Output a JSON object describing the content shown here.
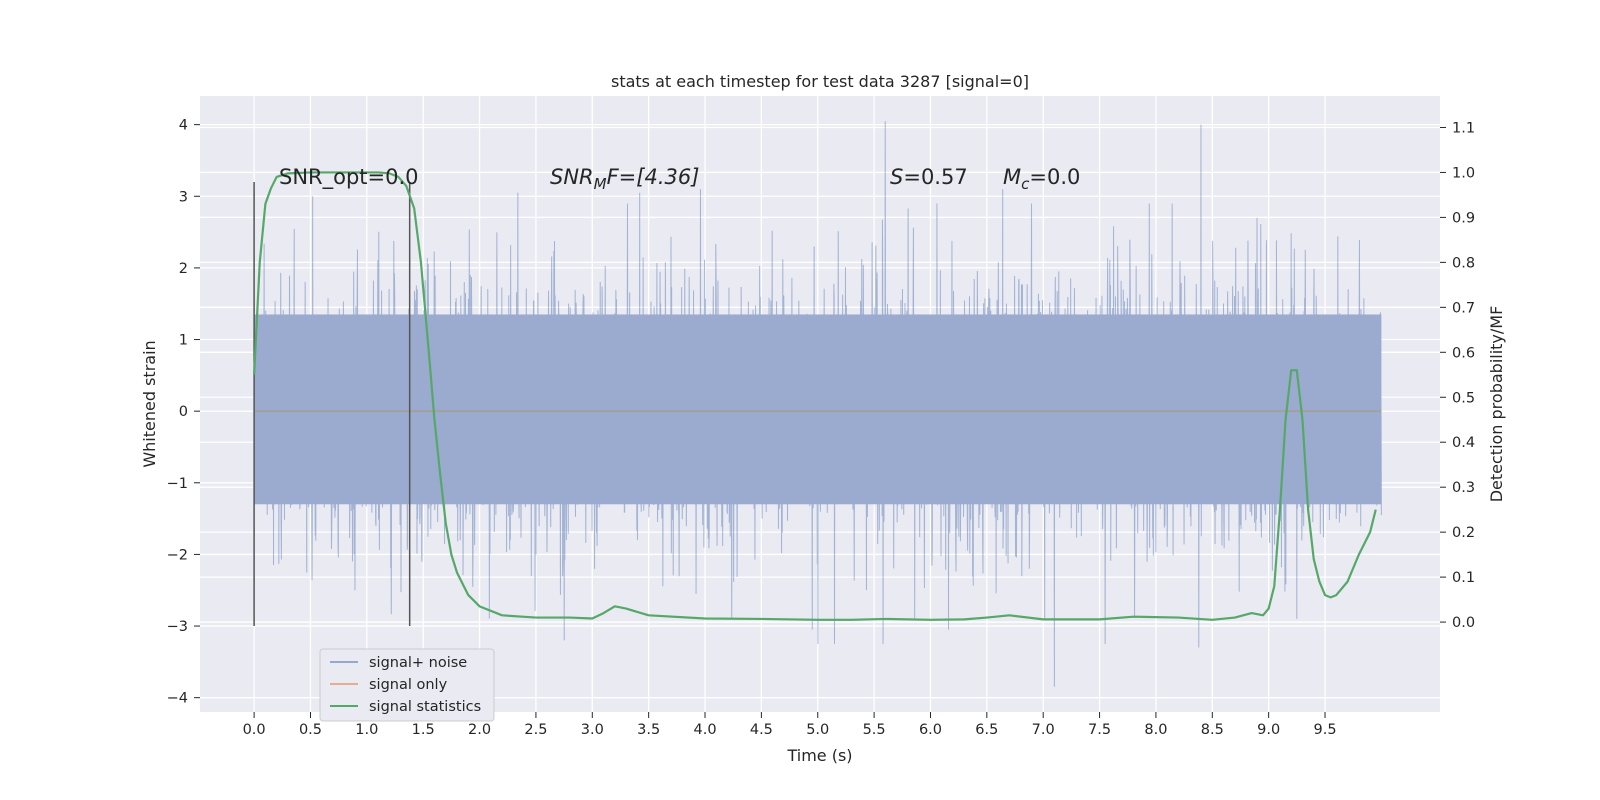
{
  "chart_data": {
    "type": "line",
    "title": "stats at each timestep for test data 3287 [signal=0]",
    "xlabel": "Time (s)",
    "ylabel": "Whitened strain",
    "y2label": "Detection probability/MF",
    "xlim": [
      -0.48,
      10.52
    ],
    "ylim": [
      -4.2,
      4.4
    ],
    "y2lim": [
      -0.2,
      1.17
    ],
    "xticks": [
      0.0,
      0.5,
      1.0,
      1.5,
      2.0,
      2.5,
      3.0,
      3.5,
      4.0,
      4.5,
      5.0,
      5.5,
      6.0,
      6.5,
      7.0,
      7.5,
      8.0,
      8.5,
      9.0,
      9.5
    ],
    "xtick_labels": [
      "0.0",
      "0.5",
      "1.0",
      "1.5",
      "2.0",
      "2.5",
      "3.0",
      "3.5",
      "4.0",
      "4.5",
      "5.0",
      "5.5",
      "6.0",
      "6.5",
      "7.0",
      "7.5",
      "8.0",
      "8.5",
      "9.0",
      "9.5"
    ],
    "yticks": [
      4,
      3,
      2,
      1,
      0,
      -1,
      -2,
      -3,
      -4
    ],
    "ytick_labels": [
      "4",
      "3",
      "2",
      "1",
      "0",
      "−1",
      "−2",
      "−3",
      "−4"
    ],
    "y2ticks": [
      1.1,
      1.0,
      0.9,
      0.8,
      0.7,
      0.6,
      0.5,
      0.4,
      0.3,
      0.2,
      0.1,
      0.0
    ],
    "y2tick_labels": [
      "1.1",
      "1.0",
      "0.9",
      "0.8",
      "0.7",
      "0.6",
      "0.5",
      "0.4",
      "0.3",
      "0.2",
      "0.1",
      "0.0"
    ],
    "grid": true,
    "legend_position": "lower-left",
    "annotations": {
      "snr_opt": "SNR_opt=0.0",
      "snr_mf_prefix": "SNR",
      "snr_mf_sub": "M",
      "snr_mf_suffix": "F=[4.36]",
      "s_var": "S",
      "s_value": "=0.57",
      "mc_var": "M",
      "mc_sub": "c",
      "mc_value": "=0.0"
    },
    "markers": [
      {
        "x": 0.0,
        "y_range": [
          -3.0,
          3.2
        ]
      },
      {
        "x": 1.38,
        "y_range": [
          -3.0,
          3.2
        ]
      }
    ],
    "series": [
      {
        "name": "signal+ noise",
        "color": "#4c72b0",
        "axis": "left",
        "time_range": [
          0.0,
          10.0
        ],
        "envelope_core": [
          -1.3,
          1.35
        ],
        "typical_peak": [
          -2.5,
          2.5
        ],
        "spikes": [
          {
            "x": 5.6,
            "y": 4.05
          },
          {
            "x": 8.4,
            "y": 4.0
          },
          {
            "x": 7.1,
            "y": -3.85
          },
          {
            "x": 0.52,
            "y": 3.0
          },
          {
            "x": 2.34,
            "y": 3.05
          },
          {
            "x": 3.42,
            "y": 3.05
          },
          {
            "x": 3.96,
            "y": 3.1
          },
          {
            "x": 6.64,
            "y": 3.1
          },
          {
            "x": 7.94,
            "y": 2.9
          },
          {
            "x": 2.75,
            "y": -3.2
          },
          {
            "x": 5.0,
            "y": -3.25
          },
          {
            "x": 5.15,
            "y": -3.25
          },
          {
            "x": 5.58,
            "y": -3.25
          },
          {
            "x": 7.55,
            "y": -3.25
          },
          {
            "x": 8.38,
            "y": -3.3
          },
          {
            "x": 4.95,
            "y": -3.05
          },
          {
            "x": 6.16,
            "y": -3.05
          },
          {
            "x": 9.25,
            "y": -2.9
          }
        ]
      },
      {
        "name": "signal only",
        "color": "#dd8452",
        "axis": "left",
        "x": [
          0.0,
          10.0
        ],
        "y": [
          0.0,
          0.0
        ]
      },
      {
        "name": "signal statistics",
        "color": "#55a868",
        "axis": "right",
        "x": [
          0.0,
          0.05,
          0.1,
          0.15,
          0.2,
          0.3,
          0.5,
          0.8,
          1.0,
          1.1,
          1.2,
          1.28,
          1.35,
          1.42,
          1.48,
          1.55,
          1.6,
          1.65,
          1.7,
          1.75,
          1.8,
          1.9,
          2.0,
          2.2,
          2.5,
          2.8,
          3.0,
          3.1,
          3.2,
          3.3,
          3.5,
          4.0,
          4.5,
          5.0,
          5.3,
          5.6,
          6.0,
          6.3,
          6.5,
          6.7,
          7.0,
          7.5,
          7.8,
          8.2,
          8.5,
          8.7,
          8.85,
          8.95,
          9.0,
          9.05,
          9.1,
          9.15,
          9.2,
          9.25,
          9.3,
          9.35,
          9.4,
          9.45,
          9.5,
          9.55,
          9.6,
          9.7,
          9.8,
          9.9,
          9.95
        ],
        "y": [
          0.55,
          0.8,
          0.93,
          0.965,
          0.99,
          0.998,
          1.0,
          1.0,
          1.0,
          1.0,
          0.998,
          0.99,
          0.97,
          0.92,
          0.8,
          0.6,
          0.45,
          0.33,
          0.22,
          0.15,
          0.11,
          0.06,
          0.035,
          0.015,
          0.01,
          0.01,
          0.008,
          0.02,
          0.035,
          0.03,
          0.015,
          0.008,
          0.007,
          0.005,
          0.005,
          0.007,
          0.005,
          0.006,
          0.01,
          0.015,
          0.006,
          0.006,
          0.012,
          0.01,
          0.005,
          0.01,
          0.02,
          0.015,
          0.03,
          0.08,
          0.25,
          0.45,
          0.56,
          0.56,
          0.45,
          0.25,
          0.14,
          0.09,
          0.06,
          0.055,
          0.06,
          0.09,
          0.15,
          0.2,
          0.25
        ]
      }
    ]
  }
}
